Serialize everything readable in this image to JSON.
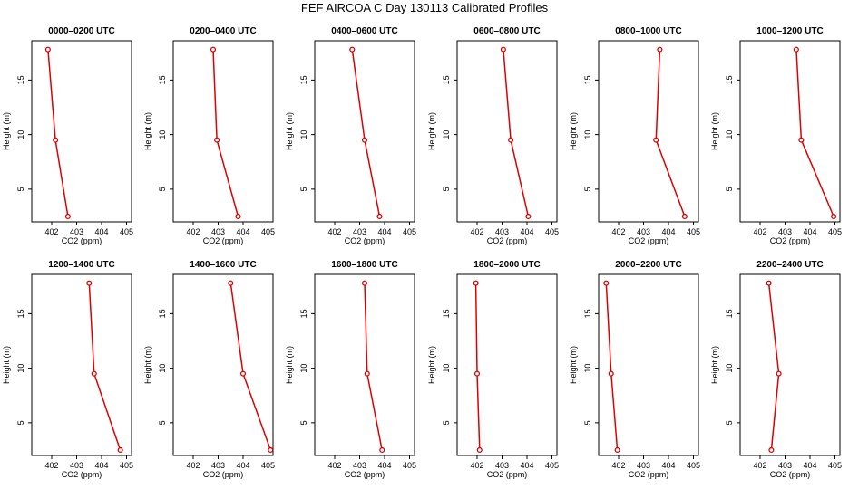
{
  "title": "FEF AIRCOA C  Day 130113  Calibrated Profiles",
  "colors": {
    "profile": "#dd0000",
    "axis": "#000000"
  },
  "chart_data": {
    "type": "line",
    "xlabel": "CO2 (ppm)",
    "ylabel": "Height (m)",
    "xlim": [
      401.2,
      405.2
    ],
    "ylim": [
      2.0,
      18.6
    ],
    "xticks": [
      402,
      403,
      404,
      405
    ],
    "yticks": [
      5,
      10,
      15
    ],
    "heights": [
      17.8,
      9.5,
      2.5
    ],
    "panels": [
      {
        "title": "0000–0200 UTC",
        "co2": [
          401.85,
          402.15,
          402.65
        ]
      },
      {
        "title": "0200–0400 UTC",
        "co2": [
          402.8,
          402.95,
          403.8
        ]
      },
      {
        "title": "0400–0600 UTC",
        "co2": [
          402.7,
          403.2,
          403.8
        ]
      },
      {
        "title": "0600–0800 UTC",
        "co2": [
          403.05,
          403.35,
          404.05
        ]
      },
      {
        "title": "0800–1000 UTC",
        "co2": [
          403.65,
          403.5,
          404.65
        ]
      },
      {
        "title": "1000–1200 UTC",
        "co2": [
          403.45,
          403.65,
          404.95
        ]
      },
      {
        "title": "1200–1400 UTC",
        "co2": [
          403.5,
          403.7,
          404.75
        ]
      },
      {
        "title": "1400–1600 UTC",
        "co2": [
          403.5,
          404.0,
          405.1
        ]
      },
      {
        "title": "1600–1800 UTC",
        "co2": [
          403.2,
          403.3,
          403.9
        ]
      },
      {
        "title": "1800–2000 UTC",
        "co2": [
          401.95,
          402.0,
          402.1
        ]
      },
      {
        "title": "2000–2200 UTC",
        "co2": [
          401.5,
          401.7,
          401.95
        ]
      },
      {
        "title": "2200–2400 UTC",
        "co2": [
          402.35,
          402.75,
          402.45
        ]
      }
    ]
  }
}
